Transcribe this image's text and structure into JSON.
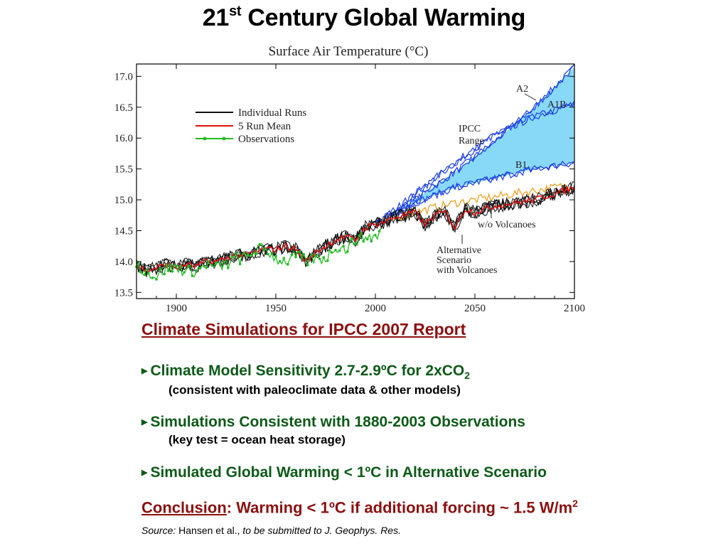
{
  "slide": {
    "title_main": "21",
    "title_sup": "st",
    "title_rest": " Century Global Warming"
  },
  "chart_data": {
    "type": "line",
    "title": "Surface Air Temperature (°C)",
    "x_ticks": [
      "1900",
      "1950",
      "2000",
      "2050",
      "2100"
    ],
    "y_ticks": [
      "13.5",
      "14.0",
      "14.5",
      "15.0",
      "15.5",
      "16.0",
      "16.5",
      "17.0"
    ],
    "xlim": [
      1880,
      2100
    ],
    "ylim": [
      13.4,
      17.2
    ],
    "grid": false,
    "legend_position": "upper-left",
    "legend": [
      "Individual Runs",
      "5 Run Mean",
      "Observations"
    ],
    "colors": {
      "individual_runs": "#111111",
      "five_run_mean": "#e01010",
      "observations": "#22bb22",
      "ipcc_fill": "#88d8f8",
      "ipcc_lines": "#1a3ee0",
      "no_volcanoes": "#f0a020"
    },
    "annotations": {
      "a2": "A2",
      "a1b": "A1B",
      "b1": "B1",
      "ipcc_line1": "IPCC",
      "ipcc_line2": "Range",
      "no_volc": "w/o Volcanoes",
      "alt1": "Alternative",
      "alt2": "Scenario",
      "alt3": "with Volcanoes"
    },
    "series": [
      {
        "name": "5 Run Mean",
        "x": [
          1880,
          1885,
          1890,
          1895,
          1900,
          1905,
          1910,
          1915,
          1920,
          1925,
          1930,
          1935,
          1940,
          1945,
          1950,
          1955,
          1960,
          1965,
          1970,
          1975,
          1980,
          1985,
          1990,
          1995,
          2000,
          2005,
          2010,
          2015,
          2020,
          2025,
          2030,
          2035,
          2040,
          2045,
          2050,
          2060,
          2070,
          2080,
          2090,
          2100
        ],
        "y": [
          13.95,
          13.85,
          13.9,
          13.95,
          13.9,
          13.95,
          13.92,
          14.0,
          14.0,
          14.05,
          14.1,
          14.1,
          14.15,
          14.2,
          14.2,
          14.25,
          14.2,
          14.0,
          14.15,
          14.25,
          14.35,
          14.4,
          14.35,
          14.55,
          14.6,
          14.65,
          14.72,
          14.75,
          14.8,
          14.6,
          14.75,
          14.8,
          14.55,
          14.85,
          14.8,
          14.9,
          14.95,
          15.0,
          15.1,
          15.2
        ]
      },
      {
        "name": "Observations",
        "x": [
          1880,
          1885,
          1890,
          1895,
          1900,
          1905,
          1910,
          1915,
          1920,
          1925,
          1930,
          1935,
          1940,
          1945,
          1950,
          1955,
          1960,
          1965,
          1970,
          1975,
          1980,
          1985,
          1990,
          1995,
          2000,
          2003
        ],
        "y": [
          13.95,
          13.85,
          13.75,
          13.9,
          13.9,
          13.85,
          13.85,
          13.95,
          13.9,
          13.95,
          14.05,
          14.05,
          14.2,
          14.2,
          14.05,
          14.0,
          14.1,
          14.0,
          14.05,
          14.05,
          14.25,
          14.2,
          14.35,
          14.4,
          14.4,
          14.5
        ]
      },
      {
        "name": "A2",
        "x": [
          2000,
          2020,
          2040,
          2060,
          2080,
          2100
        ],
        "y": [
          14.6,
          15.0,
          15.45,
          15.95,
          16.5,
          17.15
        ]
      },
      {
        "name": "A1B",
        "x": [
          2000,
          2020,
          2040,
          2060,
          2080,
          2100
        ],
        "y": [
          14.6,
          15.1,
          15.6,
          16.05,
          16.35,
          16.55
        ]
      },
      {
        "name": "B1",
        "x": [
          2000,
          2020,
          2040,
          2060,
          2080,
          2100
        ],
        "y": [
          14.6,
          14.95,
          15.2,
          15.35,
          15.5,
          15.6
        ]
      },
      {
        "name": "w/o Volcanoes",
        "x": [
          2000,
          2020,
          2040,
          2060,
          2080,
          2100
        ],
        "y": [
          14.6,
          14.8,
          14.95,
          15.05,
          15.15,
          15.25
        ]
      }
    ]
  },
  "text": {
    "heading": "Climate Simulations for IPCC 2007 Report",
    "b1_main": "Climate Model Sensitivity 2.7-2.9ºC for 2xCO",
    "b1_sub_script": "2",
    "b1_detail": "(consistent with paleoclimate data & other models)",
    "b2_main": "Simulations Consistent with 1880-2003 Observations",
    "b2_detail": "(key test = ocean heat storage)",
    "b3_main": "Simulated Global Warming < 1ºC in Alternative Scenario",
    "conclusion_label": "Conclusion",
    "conclusion_text": ": Warming < 1ºC if additional forcing ~ 1.5 W/m",
    "conclusion_sup": "2",
    "source_label": "Source:",
    "source_authors": " Hansen et al., ",
    "source_journal": "to be submitted to J. Geophys. Res."
  }
}
